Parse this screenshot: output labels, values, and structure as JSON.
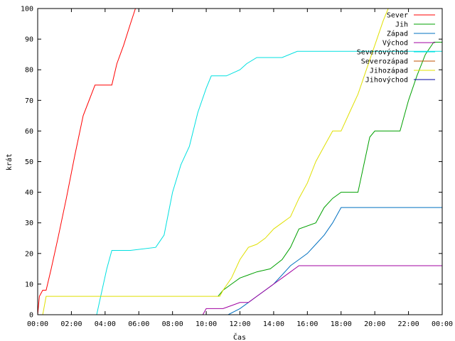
{
  "chart_data": {
    "type": "line",
    "xlabel": "Čas",
    "ylabel": "krát",
    "xlim": [
      0,
      24
    ],
    "ylim": [
      0,
      100
    ],
    "x_ticks": [
      {
        "value": 0,
        "label": "00:00"
      },
      {
        "value": 2,
        "label": "02:00"
      },
      {
        "value": 4,
        "label": "04:00"
      },
      {
        "value": 6,
        "label": "06:00"
      },
      {
        "value": 8,
        "label": "08:00"
      },
      {
        "value": 10,
        "label": "10:00"
      },
      {
        "value": 12,
        "label": "12:00"
      },
      {
        "value": 14,
        "label": "14:00"
      },
      {
        "value": 16,
        "label": "16:00"
      },
      {
        "value": 18,
        "label": "18:00"
      },
      {
        "value": 20,
        "label": "20:00"
      },
      {
        "value": 22,
        "label": "22:00"
      },
      {
        "value": 24,
        "label": "00:00"
      }
    ],
    "y_ticks": [
      0,
      10,
      20,
      30,
      40,
      50,
      60,
      70,
      80,
      90,
      100
    ],
    "grid": false,
    "legend_position": "top-right",
    "series": [
      {
        "name": "Sever",
        "color": "#ff0000",
        "x": [
          0.0,
          0.1,
          0.3,
          0.5,
          0.8,
          1.2,
          1.7,
          2.2,
          2.7,
          3.4,
          4.4,
          4.7,
          5.1,
          5.5,
          5.8
        ],
        "y": [
          0,
          6,
          8,
          8,
          15,
          25,
          38,
          52,
          65,
          75,
          75,
          82,
          88,
          95,
          100
        ]
      },
      {
        "name": "Jih",
        "color": "#00a000",
        "x": [
          10.7,
          11.0,
          11.5,
          12.0,
          12.5,
          13.0,
          13.8,
          14.5,
          15.0,
          15.5,
          16.5,
          17.0,
          17.5,
          18.0,
          19.0,
          19.7,
          20.0,
          21.5,
          22.0,
          22.5,
          23.0,
          23.5,
          24.0
        ],
        "y": [
          6,
          8,
          10,
          12,
          13,
          14,
          15,
          18,
          22,
          28,
          30,
          35,
          38,
          40,
          40,
          58,
          60,
          60,
          70,
          78,
          85,
          89,
          89
        ]
      },
      {
        "name": "Západ",
        "color": "#0070c0",
        "x": [
          11.3,
          12.0,
          12.5,
          13.0,
          13.5,
          14.0,
          14.5,
          15.0,
          15.5,
          16.0,
          16.5,
          17.0,
          17.5,
          18.0,
          24.0
        ],
        "y": [
          0,
          2,
          4,
          6,
          8,
          10,
          13,
          16,
          18,
          20,
          23,
          26,
          30,
          35,
          35
        ]
      },
      {
        "name": "Východ",
        "color": "#a000a0",
        "x": [
          9.8,
          10.0,
          10.8,
          11.0,
          11.5,
          12.0,
          12.5,
          13.0,
          13.5,
          14.0,
          14.5,
          15.0,
          15.5,
          24.0
        ],
        "y": [
          0,
          2,
          2,
          2,
          3,
          4,
          4,
          6,
          8,
          10,
          12,
          14,
          16,
          16
        ]
      },
      {
        "name": "Severovýchod",
        "color": "#00e0e0",
        "x": [
          3.5,
          3.7,
          4.1,
          4.4,
          5.5,
          7.0,
          7.5,
          8.0,
          8.5,
          9.0,
          9.5,
          10.0,
          10.3,
          10.5,
          11.2,
          12.0,
          12.4,
          13.0,
          14.5,
          15.4,
          24.0
        ],
        "y": [
          0,
          5,
          15,
          21,
          21,
          22,
          26,
          40,
          49,
          55,
          66,
          74,
          78,
          78,
          78,
          80,
          82,
          84,
          84,
          86,
          86
        ]
      },
      {
        "name": "Severozápad",
        "color": "#c05000",
        "x": [],
        "y": []
      },
      {
        "name": "Jihozápad",
        "color": "#e0e000",
        "x": [
          0.3,
          0.5,
          10.8,
          11.0,
          11.5,
          12.0,
          12.5,
          13.0,
          13.5,
          14.0,
          14.5,
          15.0,
          15.5,
          16.0,
          16.5,
          17.0,
          17.5,
          18.0,
          18.5,
          19.0,
          19.5,
          20.0,
          20.5,
          20.8
        ],
        "y": [
          0,
          6,
          6,
          8,
          12,
          18,
          22,
          23,
          25,
          28,
          30,
          32,
          38,
          43,
          50,
          55,
          60,
          60,
          66,
          72,
          80,
          88,
          96,
          100
        ]
      },
      {
        "name": "Jihovýchod",
        "color": "#0000a0",
        "x": [],
        "y": []
      }
    ]
  }
}
